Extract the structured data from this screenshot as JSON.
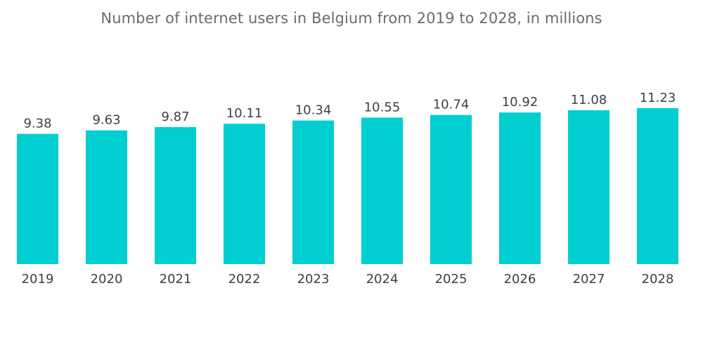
{
  "chart_data": {
    "type": "bar",
    "title": "Number of internet users in Belgium from 2019 to 2028, in millions",
    "xlabel": "",
    "ylabel": "",
    "categories": [
      "2019",
      "2020",
      "2021",
      "2022",
      "2023",
      "2024",
      "2025",
      "2026",
      "2027",
      "2028"
    ],
    "values": [
      9.38,
      9.63,
      9.87,
      10.11,
      10.34,
      10.55,
      10.74,
      10.92,
      11.08,
      11.23
    ],
    "value_labels": [
      "9.38",
      "9.63",
      "9.87",
      "10.11",
      "10.34",
      "10.55",
      "10.74",
      "10.92",
      "11.08",
      "11.23"
    ],
    "ylim": [
      0,
      11.23
    ],
    "grid": false,
    "legend": "none",
    "colors": {
      "bar": "#00CED1",
      "title": "#6b6b6b",
      "labels": "#3f3f3f"
    }
  }
}
